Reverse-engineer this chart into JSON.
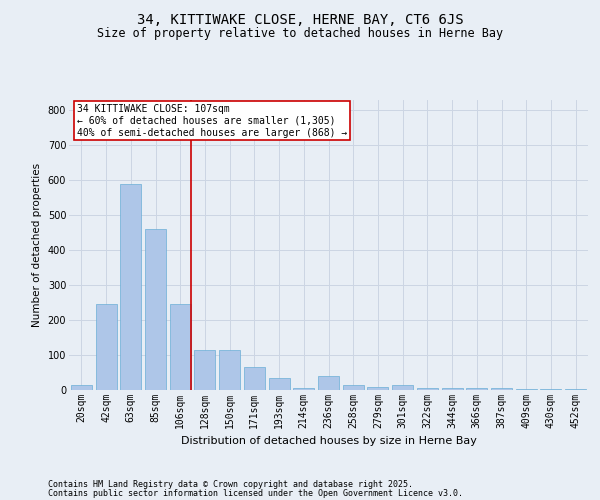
{
  "title1": "34, KITTIWAKE CLOSE, HERNE BAY, CT6 6JS",
  "title2": "Size of property relative to detached houses in Herne Bay",
  "xlabel": "Distribution of detached houses by size in Herne Bay",
  "ylabel": "Number of detached properties",
  "categories": [
    "20sqm",
    "42sqm",
    "63sqm",
    "85sqm",
    "106sqm",
    "128sqm",
    "150sqm",
    "171sqm",
    "193sqm",
    "214sqm",
    "236sqm",
    "258sqm",
    "279sqm",
    "301sqm",
    "322sqm",
    "344sqm",
    "366sqm",
    "387sqm",
    "409sqm",
    "430sqm",
    "452sqm"
  ],
  "values": [
    15,
    245,
    590,
    460,
    245,
    115,
    115,
    65,
    35,
    5,
    40,
    15,
    10,
    15,
    5,
    5,
    5,
    5,
    3,
    3,
    3
  ],
  "bar_color": "#aec6e8",
  "bar_edge_color": "#6baed6",
  "property_line_index": 4,
  "property_line_color": "#cc0000",
  "annotation_text": "34 KITTIWAKE CLOSE: 107sqm\n← 60% of detached houses are smaller (1,305)\n40% of semi-detached houses are larger (868) →",
  "annotation_box_color": "#cc0000",
  "grid_color": "#ccd5e3",
  "background_color": "#e8eef5",
  "ylim": [
    0,
    830
  ],
  "yticks": [
    0,
    100,
    200,
    300,
    400,
    500,
    600,
    700,
    800
  ],
  "footer1": "Contains HM Land Registry data © Crown copyright and database right 2025.",
  "footer2": "Contains public sector information licensed under the Open Government Licence v3.0.",
  "title1_fontsize": 10,
  "title2_fontsize": 8.5,
  "xlabel_fontsize": 8,
  "ylabel_fontsize": 7.5,
  "tick_fontsize": 7,
  "annotation_fontsize": 7,
  "footer_fontsize": 6
}
